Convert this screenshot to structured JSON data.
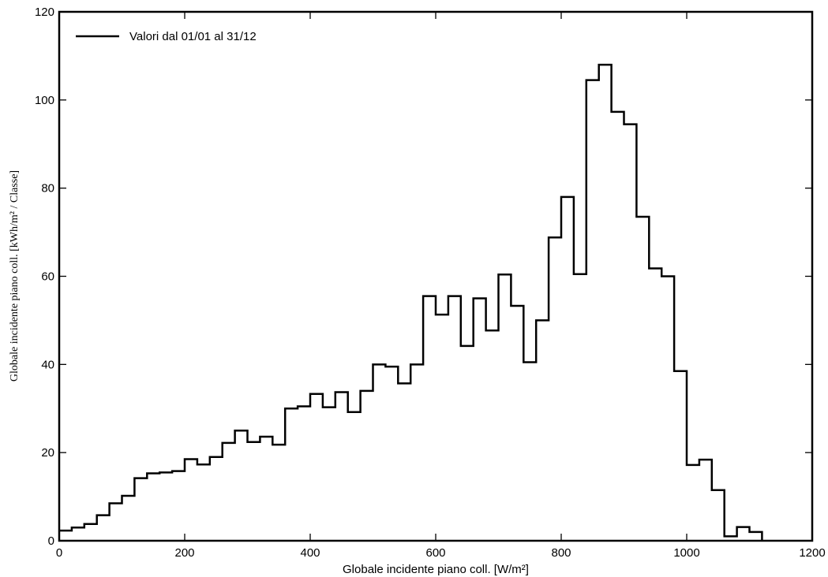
{
  "chart_data": {
    "type": "line",
    "title": "",
    "xlabel": "Globale incidente piano coll. [W/m²]",
    "ylabel": "Globale incidente piano coll. [kWh/m² / Classe]",
    "xlim": [
      0,
      1200
    ],
    "ylim": [
      0,
      120
    ],
    "xticks": [
      0,
      200,
      400,
      600,
      800,
      1000,
      1200
    ],
    "yticks": [
      0,
      20,
      40,
      60,
      80,
      100,
      120
    ],
    "xtick_labels": [
      "0",
      "200",
      "400",
      "600",
      "800",
      "1000",
      "1200"
    ],
    "ytick_labels": [
      "0",
      "20",
      "40",
      "60",
      "80",
      "100",
      "120"
    ],
    "grid": false,
    "legend_position": "top-left",
    "bin_width": 20,
    "series": [
      {
        "name": "Valori dal 01/01 al 31/12",
        "color": "#000000",
        "step": true,
        "bin_start": [
          0,
          20,
          40,
          60,
          80,
          100,
          120,
          140,
          160,
          180,
          200,
          220,
          240,
          260,
          280,
          300,
          320,
          340,
          360,
          380,
          400,
          420,
          440,
          460,
          480,
          500,
          520,
          540,
          560,
          580,
          600,
          620,
          640,
          660,
          680,
          700,
          720,
          740,
          760,
          780,
          800,
          820,
          840,
          860,
          880,
          900,
          920,
          940,
          960,
          980,
          1000,
          1020,
          1040,
          1060,
          1080,
          1100
        ],
        "values": [
          2.3,
          3.0,
          3.8,
          5.8,
          8.5,
          10.2,
          14.2,
          15.3,
          15.5,
          15.8,
          18.5,
          17.3,
          19.0,
          22.2,
          25.0,
          22.4,
          23.6,
          21.8,
          30.0,
          30.5,
          33.3,
          30.3,
          33.7,
          29.2,
          34.0,
          40.0,
          39.5,
          35.7,
          40.0,
          55.5,
          51.3,
          55.5,
          44.2,
          55.0,
          47.7,
          60.4,
          53.3,
          40.5,
          50.0,
          68.8,
          78.0,
          60.5,
          104.5,
          108.0,
          97.3,
          94.5,
          73.5,
          61.8,
          60.0,
          38.5,
          17.2,
          18.4,
          11.5,
          1.0,
          3.1,
          2.0
        ]
      }
    ]
  }
}
